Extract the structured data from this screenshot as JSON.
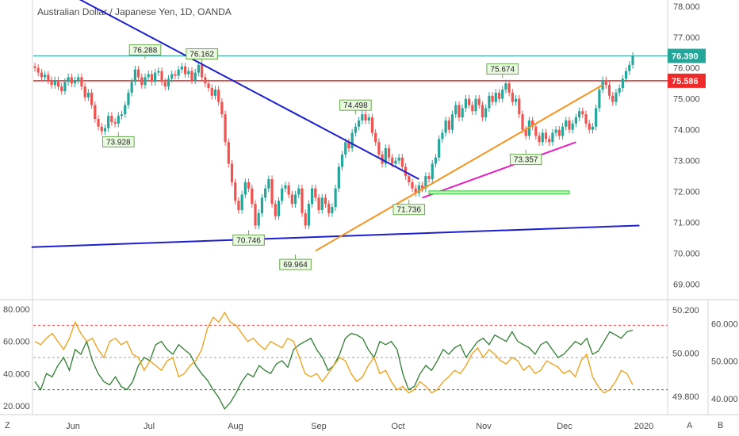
{
  "header": {
    "title": "Australian Dollar / Japanese Yen, 1D, OANDA"
  },
  "footer": {
    "left_badge": "Z",
    "right_badge_a": "A",
    "right_badge_b": "B"
  },
  "chart_data": [
    {
      "type": "candlestick",
      "title": "Australian Dollar / Japanese Yen, 1D, OANDA",
      "x_labels": [
        "Jun",
        "Jul",
        "Aug",
        "Sep",
        "Oct",
        "Nov",
        "Dec",
        "2020"
      ],
      "y_ticks": [
        "78.000",
        "77.000",
        "76.000",
        "75.000",
        "74.000",
        "73.000",
        "72.000",
        "71.000",
        "70.000",
        "69.000"
      ],
      "ylim": [
        68.5,
        78.2
      ],
      "series": [
        {
          "close": [
            76.0,
            75.85,
            75.7,
            75.78,
            75.6,
            75.45,
            75.6,
            75.4,
            75.25,
            75.55,
            75.7,
            75.5,
            75.6,
            75.7,
            75.4,
            75.05,
            75.2,
            74.8,
            74.35,
            74.1,
            73.95,
            74.05,
            74.45,
            74.25,
            74.2,
            74.45,
            74.5,
            74.8,
            75.2,
            75.55,
            75.95,
            75.7,
            75.45,
            75.7,
            75.8,
            75.55,
            75.85,
            75.9,
            75.55,
            75.4,
            75.65,
            75.8,
            75.75,
            75.95,
            76.05,
            75.8,
            75.9,
            75.6,
            75.85,
            76.1,
            75.7,
            75.5,
            75.35,
            75.1,
            75.3,
            74.9,
            74.5,
            73.6,
            72.9,
            72.3,
            71.7,
            71.4,
            71.9,
            72.3,
            72.1,
            71.6,
            70.9,
            71.3,
            71.8,
            72.1,
            72.4,
            71.6,
            71.2,
            71.7,
            72.1,
            72.2,
            71.9,
            71.6,
            71.9,
            72.1,
            71.3,
            70.9,
            71.6,
            72.1,
            71.8,
            71.4,
            71.8,
            71.6,
            71.3,
            71.5,
            72.1,
            72.8,
            73.2,
            73.6,
            73.4,
            73.9,
            74.1,
            74.3,
            74.5,
            74.3,
            74.4,
            73.9,
            73.6,
            73.2,
            72.9,
            73.4,
            73.1,
            72.9,
            73.0,
            73.1,
            72.8,
            72.5,
            72.3,
            72.1,
            71.95,
            72.2,
            72.1,
            72.5,
            72.4,
            72.9,
            73.1,
            73.7,
            73.9,
            74.3,
            74.0,
            74.5,
            74.8,
            74.4,
            74.7,
            75.0,
            74.8,
            74.6,
            75.0,
            74.8,
            74.4,
            74.7,
            75.1,
            74.9,
            75.2,
            75.0,
            75.3,
            75.5,
            75.2,
            74.9,
            75.0,
            74.5,
            74.0,
            73.8,
            74.3,
            74.1,
            73.8,
            73.6,
            73.9,
            73.7,
            73.6,
            73.9,
            74.0,
            73.8,
            74.1,
            74.3,
            74.0,
            74.2,
            74.4,
            74.6,
            74.5,
            74.2,
            74.0,
            74.1,
            74.7,
            75.3,
            75.6,
            75.45,
            75.1,
            74.9,
            75.2,
            75.35,
            75.65,
            75.9,
            76.1,
            76.39
          ]
        }
      ],
      "annotations": [
        "76.288",
        "76.162",
        "73.928",
        "70.746",
        "74.498",
        "69.964",
        "71.736",
        "75.674",
        "73.357"
      ],
      "price_tags": [
        {
          "text": "76.390",
          "color": "#26a69a"
        },
        {
          "text": "75.586",
          "color": "#ef2a2a"
        }
      ],
      "colors": {
        "up": "#26a69a",
        "down": "#ef5350"
      },
      "grid": false
    },
    {
      "type": "line",
      "x_labels": [
        "Jun",
        "Jul",
        "Aug",
        "Sep",
        "Oct",
        "Nov",
        "Dec",
        "2020"
      ],
      "y_ticks_left": [
        "80.000",
        "60.000",
        "40.000",
        "20.000"
      ],
      "ylim_left": [
        15,
        85
      ],
      "y_ticks_mid": [
        "50.200",
        "50.000",
        "49.800"
      ],
      "ylim_mid": [
        49.72,
        50.24
      ],
      "y_ticks_right": [
        "60.000",
        "50.000",
        "40.000"
      ],
      "ylim_right": [
        36,
        66
      ],
      "levels": [
        {
          "value": 70,
          "color": "#ef5350"
        },
        {
          "value": 50,
          "color": "#9e9e9e"
        },
        {
          "value": 30,
          "color": "#2e7d32"
        }
      ],
      "series": [
        {
          "color": "#2e7d32",
          "values": [
            35,
            30,
            40,
            38,
            45,
            50,
            42,
            55,
            52,
            60,
            48,
            40,
            35,
            33,
            38,
            32,
            30,
            35,
            45,
            50,
            48,
            58,
            60,
            55,
            52,
            58,
            55,
            52,
            45,
            40,
            36,
            30,
            25,
            18,
            22,
            28,
            35,
            40,
            38,
            45,
            42,
            40,
            46,
            48,
            44,
            55,
            58,
            60,
            62,
            55,
            50,
            42,
            45,
            52,
            62,
            65,
            64,
            62,
            55,
            50,
            60,
            58,
            60,
            55,
            40,
            30,
            32,
            40,
            45,
            42,
            48,
            55,
            52,
            56,
            58,
            50,
            55,
            60,
            62,
            58,
            64,
            62,
            60,
            66,
            60,
            58,
            56,
            52,
            58,
            60,
            55,
            50,
            52,
            56,
            60,
            58,
            62,
            52,
            54,
            60,
            66,
            64,
            62,
            66,
            67
          ]
        },
        {
          "color": "#f39c12",
          "values": [
            60,
            58,
            62,
            65,
            60,
            55,
            62,
            72,
            65,
            60,
            62,
            55,
            50,
            60,
            62,
            58,
            60,
            52,
            50,
            42,
            48,
            45,
            42,
            48,
            50,
            38,
            40,
            45,
            48,
            55,
            68,
            75,
            72,
            78,
            72,
            70,
            65,
            60,
            62,
            58,
            55,
            60,
            58,
            56,
            62,
            60,
            50,
            40,
            38,
            40,
            35,
            40,
            45,
            50,
            48,
            40,
            35,
            38,
            45,
            50,
            40,
            42,
            35,
            30,
            32,
            28,
            30,
            35,
            32,
            28,
            30,
            35,
            38,
            42,
            40,
            45,
            52,
            56,
            50,
            55,
            52,
            48,
            46,
            50,
            48,
            42,
            45,
            40,
            42,
            48,
            46,
            44,
            40,
            42,
            38,
            48,
            52,
            38,
            32,
            28,
            30,
            35,
            42,
            40,
            33
          ]
        }
      ],
      "grid": false
    }
  ]
}
